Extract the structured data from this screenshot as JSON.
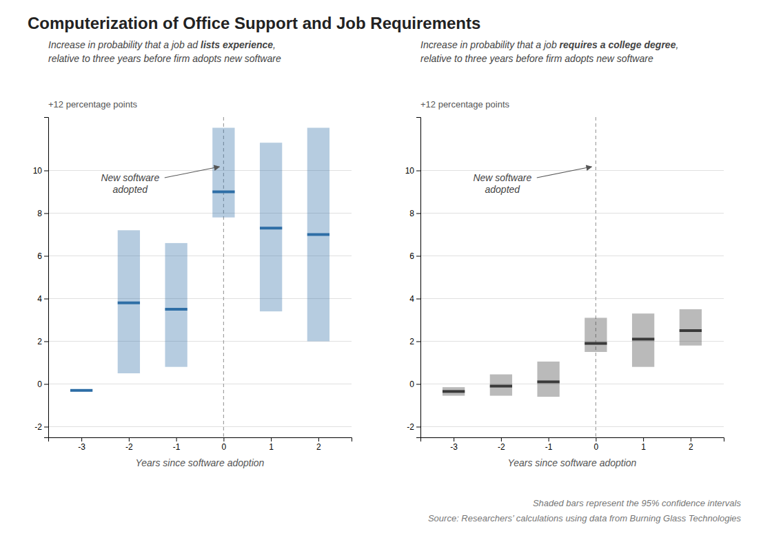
{
  "title": "Computerization of Office Support and Job Requirements",
  "notes": [
    "Shaded bars represent the 95% confidence intervals",
    "Source: Researchers’ calculations using data from Burning Glass Technologies"
  ],
  "chart_data": [
    {
      "type": "bar",
      "subtitle": [
        "Increase in probability that a job ad ",
        "lists experience",
        ",",
        "relative to three years before firm adopts new software"
      ],
      "ylabel": "+12 percentage points",
      "xlabel": "Years since software adoption",
      "annotation": "New software\nadopted",
      "x": [
        -3,
        -2,
        -1,
        0,
        1,
        2
      ],
      "values": [
        -0.3,
        3.8,
        3.5,
        9.0,
        7.3,
        7.0
      ],
      "ci_low": [
        -0.3,
        0.5,
        0.8,
        7.8,
        3.4,
        2.0
      ],
      "ci_high": [
        -0.3,
        7.2,
        6.6,
        12.0,
        11.3,
        12.0
      ],
      "color": "#2e6ea6",
      "xlim": [
        -3.7,
        2.7
      ],
      "xticks": [
        -3,
        -2,
        -1,
        0,
        1,
        2
      ],
      "ylim": [
        -2.5,
        12.5
      ],
      "yticks": [
        -2,
        0,
        2,
        4,
        6,
        8,
        10
      ],
      "grid": true
    },
    {
      "type": "bar",
      "subtitle": [
        "Increase in probability that a job ",
        "requires a college degree",
        ",",
        "relative to three years before firm adopts new software"
      ],
      "ylabel": "+12 percentage points",
      "xlabel": "Years since software adoption",
      "annotation": "New software\nadopted",
      "x": [
        -3,
        -2,
        -1,
        0,
        1,
        2
      ],
      "values": [
        -0.35,
        -0.1,
        0.1,
        1.9,
        2.1,
        2.5
      ],
      "ci_low": [
        -0.55,
        -0.55,
        -0.6,
        1.5,
        0.8,
        1.8
      ],
      "ci_high": [
        -0.15,
        0.45,
        1.05,
        3.1,
        3.3,
        3.5
      ],
      "color": "#3a3a3a",
      "xlim": [
        -3.7,
        2.7
      ],
      "xticks": [
        -3,
        -2,
        -1,
        0,
        1,
        2
      ],
      "ylim": [
        -2.5,
        12.5
      ],
      "yticks": [
        -2,
        0,
        2,
        4,
        6,
        8,
        10
      ],
      "grid": true
    }
  ]
}
